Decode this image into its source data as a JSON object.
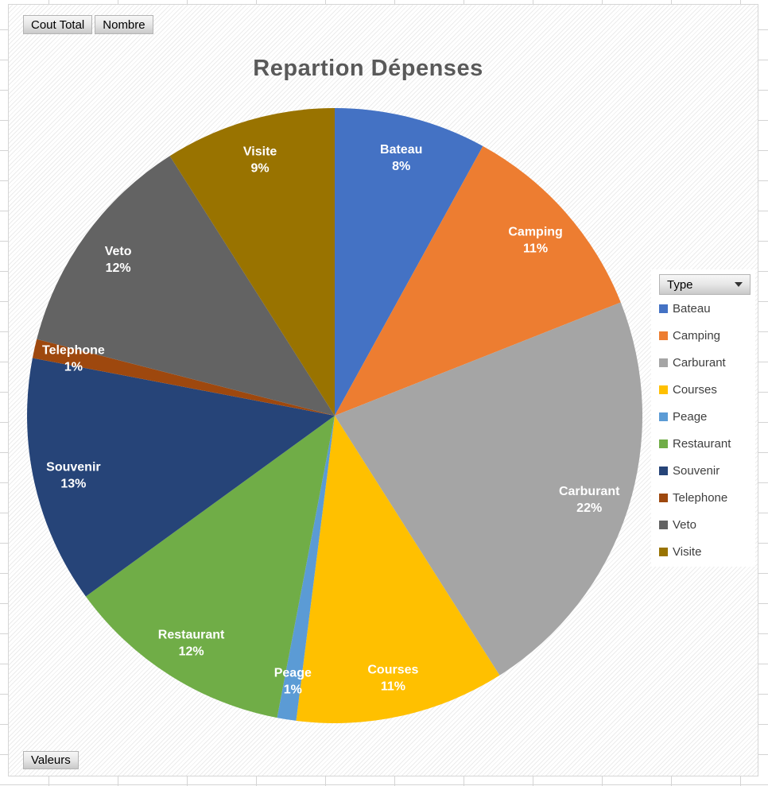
{
  "pivot": {
    "top_buttons": [
      "Cout Total",
      "Nombre"
    ],
    "bottom_button": "Valeurs",
    "legend_button": "Type"
  },
  "chart_data": {
    "type": "pie",
    "title": "Repartion Dépenses",
    "categories": [
      "Bateau",
      "Camping",
      "Carburant",
      "Courses",
      "Peage",
      "Restaurant",
      "Souvenir",
      "Telephone",
      "Veto",
      "Visite"
    ],
    "values": [
      8,
      11,
      22,
      11,
      1,
      12,
      13,
      1,
      12,
      9
    ],
    "unit": "%",
    "colors": [
      "#4472C4",
      "#ED7D31",
      "#A5A5A5",
      "#FFC000",
      "#5B9BD5",
      "#70AD47",
      "#264478",
      "#9E480E",
      "#636363",
      "#997300"
    ],
    "legend_position": "right",
    "start_angle": 0,
    "direction": "clockwise",
    "data_labels": "category name + percent, white bold, inside slices"
  },
  "colors": {
    "title_text": "#595959",
    "legend_text": "#3f3f3f",
    "label_text": "#ffffff",
    "chart_border": "#d6d6d6",
    "hatch_line": "#ececec",
    "gridline": "#d4d4d4"
  }
}
